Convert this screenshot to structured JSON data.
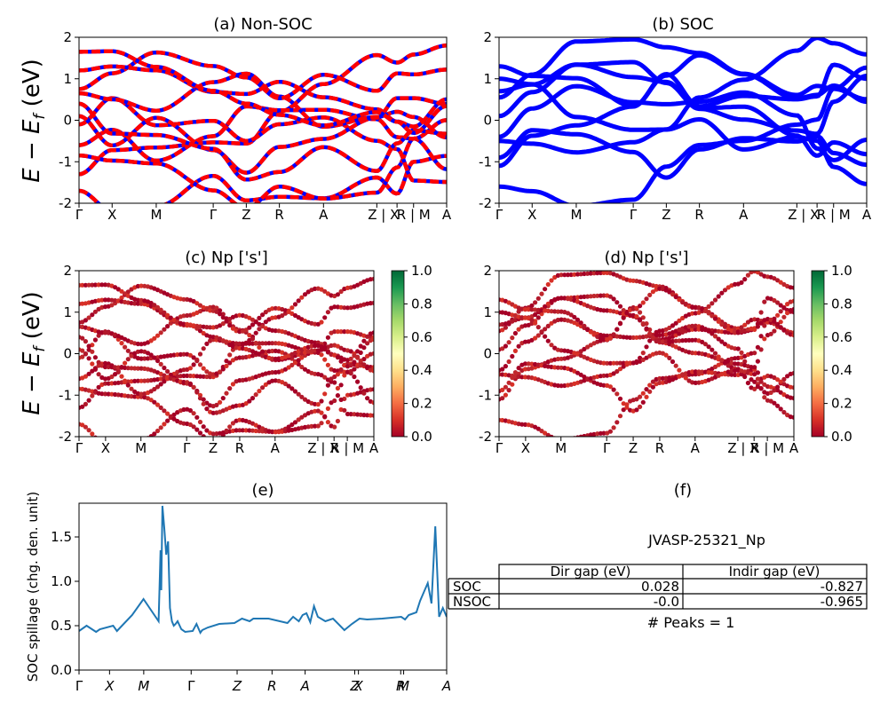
{
  "figure": {
    "panel_a_title": "(a) Non-SOC",
    "panel_b_title": "(b) SOC",
    "panel_c_title": "(c)  Np ['s']",
    "panel_d_title": "(d) Np ['s']",
    "panel_e_title": "(e)",
    "panel_f_title": "(f)",
    "energy_ylabel": "E − E",
    "energy_ylabel_sub": "f",
    "energy_ylabel_unit": " (eV)",
    "spillage_ylabel": "SOC spillage (chg. den. unit)"
  },
  "chart_data": [
    {
      "panel": "a",
      "type": "line",
      "title": "(a) Non-SOC",
      "ylabel": "E − Ef (eV)",
      "ylim": [
        -2,
        2
      ],
      "yticks": [
        -2,
        -1,
        0,
        1,
        2
      ],
      "kpath_labels": [
        "Γ",
        "X",
        "M",
        "Γ",
        "Z",
        "R",
        "A",
        "Z | X",
        "R | M",
        "A"
      ],
      "series_colors": [
        "#ff0000",
        "#0000ff"
      ],
      "style": "spin-up red dashed over spin-down blue",
      "bands_at_gamma": [
        -1.7,
        -1.3,
        -0.85,
        -0.6,
        -0.1,
        0.1,
        0.4,
        0.65,
        0.75,
        1.2,
        1.65
      ]
    },
    {
      "panel": "b",
      "type": "line",
      "title": "(b) SOC",
      "ylim": [
        -2,
        2
      ],
      "yticks": [
        -2,
        -1,
        0,
        1,
        2
      ],
      "kpath_labels": [
        "Γ",
        "X",
        "M",
        "Γ",
        "Z",
        "R",
        "A",
        "Z | X",
        "R | M",
        "A"
      ],
      "series_colors": [
        "#0000ff"
      ],
      "bands_at_gamma": [
        -1.6,
        -1.1,
        -0.9,
        -0.5,
        -0.4,
        0.1,
        0.55,
        0.7,
        1.0,
        1.3
      ]
    },
    {
      "panel": "c",
      "type": "scatter",
      "title": "(c)  Np ['s']",
      "ylabel": "E − Ef (eV)",
      "ylim": [
        -2,
        2
      ],
      "yticks": [
        -2,
        -1,
        0,
        1,
        2
      ],
      "kpath_labels": [
        "Γ",
        "X",
        "M",
        "Γ",
        "Z",
        "R",
        "A",
        "Z | X",
        "R | M",
        "A"
      ],
      "colorbar": {
        "colormap": "RdYlGn",
        "min": 0.0,
        "max": 1.0,
        "ticks": [
          "1.0",
          "0.8",
          "0.6",
          "0.4",
          "0.2",
          "0.0"
        ]
      },
      "projection_range": [
        0.0,
        0.15
      ]
    },
    {
      "panel": "d",
      "type": "scatter",
      "title": "(d) Np ['s']",
      "ylim": [
        -2,
        2
      ],
      "yticks": [
        -2,
        -1,
        0,
        1,
        2
      ],
      "kpath_labels": [
        "Γ",
        "X",
        "M",
        "Γ",
        "Z",
        "R",
        "A",
        "Z | X",
        "R | M",
        "A"
      ],
      "colorbar": {
        "colormap": "RdYlGn",
        "min": 0.0,
        "max": 1.0,
        "ticks": [
          "1.0",
          "0.8",
          "0.6",
          "0.4",
          "0.2",
          "0.0"
        ]
      },
      "projection_range": [
        0.0,
        0.15
      ]
    },
    {
      "panel": "e",
      "type": "line",
      "title": "(e)",
      "ylabel": "SOC spillage (chg. den. unit)",
      "ylim": [
        0,
        1.88
      ],
      "yticks": [
        "0.0",
        "0.5",
        "1.0",
        "1.5"
      ],
      "xtick_labels": [
        "Γ",
        "X",
        "M",
        "Γ",
        "Z",
        "R",
        "A",
        "Z",
        "X",
        "R",
        "M",
        "A"
      ],
      "series_color": "#1f77b4",
      "x": [
        0.0,
        0.2,
        0.45,
        0.55,
        0.9,
        1.0,
        1.4,
        1.7,
        2.1,
        2.15,
        2.17,
        2.2,
        2.25,
        2.3,
        2.35,
        2.4,
        2.45,
        2.5,
        2.55,
        2.6,
        2.7,
        2.8,
        3.0,
        3.1,
        3.2,
        3.25,
        3.4,
        3.7,
        4.1,
        4.3,
        4.5,
        4.6,
        5.0,
        5.5,
        5.65,
        5.8,
        5.9,
        6.0,
        6.1,
        6.2,
        6.3,
        6.5,
        6.7,
        7.0,
        7.2,
        7.4,
        7.6,
        8.0,
        8.5,
        8.6,
        8.7,
        8.9,
        9.0,
        9.2,
        9.3,
        9.4,
        9.5,
        9.6,
        9.7
      ],
      "y": [
        0.44,
        0.5,
        0.43,
        0.46,
        0.5,
        0.44,
        0.62,
        0.8,
        0.55,
        1.35,
        0.9,
        1.85,
        1.6,
        1.3,
        1.45,
        0.7,
        0.55,
        0.5,
        0.52,
        0.55,
        0.46,
        0.43,
        0.44,
        0.52,
        0.42,
        0.45,
        0.48,
        0.52,
        0.53,
        0.58,
        0.55,
        0.58,
        0.58,
        0.53,
        0.6,
        0.55,
        0.62,
        0.64,
        0.54,
        0.72,
        0.6,
        0.55,
        0.58,
        0.45,
        0.52,
        0.58,
        0.57,
        0.58,
        0.6,
        0.57,
        0.62,
        0.65,
        0.78,
        0.98,
        0.75,
        1.62,
        0.6,
        0.7,
        0.6
      ]
    }
  ],
  "table": {
    "title": "JVASP-25321_Np",
    "columns": [
      "",
      "Dir gap (eV)",
      "Indir gap (eV)"
    ],
    "rows": [
      [
        "SOC",
        "0.028",
        "-0.827"
      ],
      [
        "NSOC",
        "-0.0",
        "-0.965"
      ]
    ],
    "footer": "# Peaks = 1"
  }
}
